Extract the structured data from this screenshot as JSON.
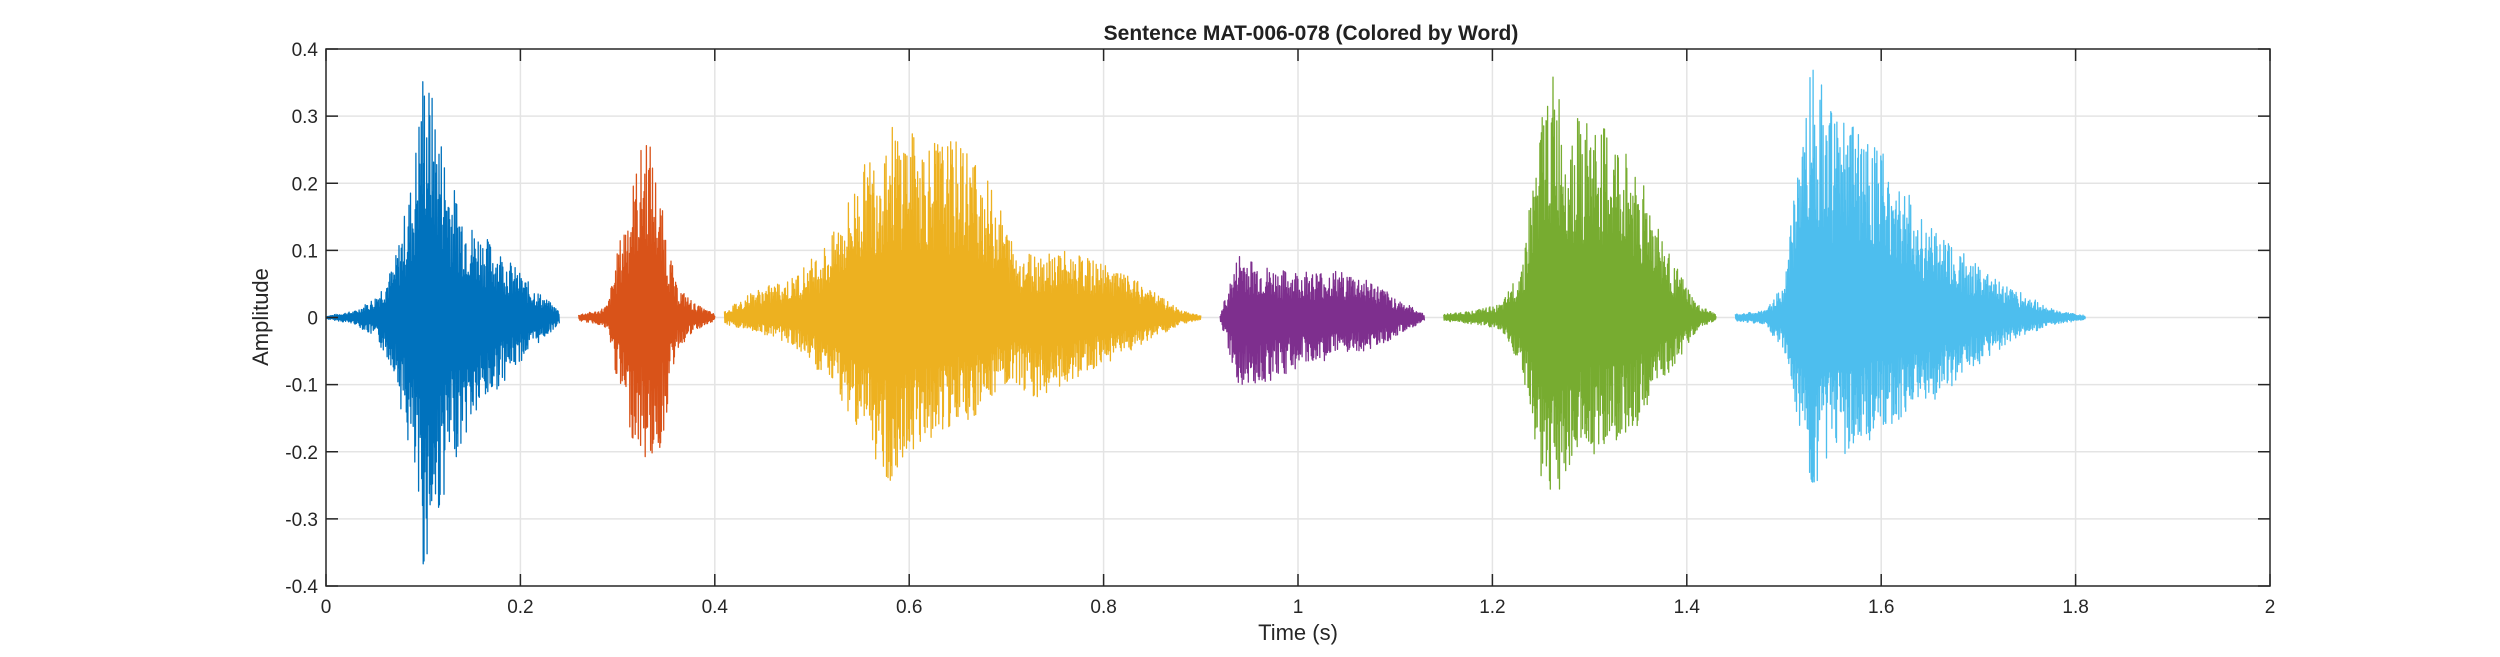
{
  "chart_data": {
    "type": "line",
    "title": "Sentence MAT-006-078 (Colored by Word)",
    "xlabel": "Time (s)",
    "ylabel": "Amplitude",
    "xlim": [
      0,
      2
    ],
    "ylim": [
      -0.4,
      0.4
    ],
    "x_ticks": [
      0,
      0.2,
      0.4,
      0.6,
      0.8,
      1,
      1.2,
      1.4,
      1.6,
      1.8,
      2
    ],
    "y_ticks": [
      -0.4,
      -0.3,
      -0.2,
      -0.1,
      0,
      0.1,
      0.2,
      0.3,
      0.4
    ],
    "x_tick_labels": [
      "0",
      "0.2",
      "0.4",
      "0.6",
      "0.8",
      "1",
      "1.2",
      "1.4",
      "1.6",
      "1.8",
      "2"
    ],
    "y_tick_labels": [
      "-0.4",
      "-0.3",
      "-0.2",
      "-0.1",
      "0",
      "0.1",
      "0.2",
      "0.3",
      "0.4"
    ],
    "grid": true,
    "series": [
      {
        "color": "#0072BD",
        "x": [
          0.0,
          0.03,
          0.05,
          0.07,
          0.09,
          0.1,
          0.11,
          0.13,
          0.15,
          0.18,
          0.21,
          0.24
        ],
        "upper": [
          0.002,
          0.01,
          0.03,
          0.08,
          0.22,
          0.385,
          0.33,
          0.2,
          0.14,
          0.1,
          0.05,
          0.01
        ],
        "lower": [
          -0.002,
          -0.01,
          -0.03,
          -0.08,
          -0.24,
          -0.38,
          -0.33,
          -0.22,
          -0.16,
          -0.1,
          -0.05,
          -0.01
        ]
      },
      {
        "color": "#D95319",
        "x": [
          0.26,
          0.28,
          0.29,
          0.3,
          0.315,
          0.33,
          0.345,
          0.36,
          0.38,
          0.4
        ],
        "upper": [
          0.005,
          0.01,
          0.02,
          0.1,
          0.2,
          0.29,
          0.17,
          0.05,
          0.02,
          0.005
        ],
        "lower": [
          -0.005,
          -0.01,
          -0.02,
          -0.1,
          -0.18,
          -0.22,
          -0.2,
          -0.05,
          -0.02,
          -0.005
        ]
      },
      {
        "color": "#EDB120",
        "x": [
          0.41,
          0.44,
          0.48,
          0.52,
          0.55,
          0.58,
          0.62,
          0.66,
          0.69,
          0.71,
          0.73,
          0.76,
          0.8,
          0.84,
          0.88,
          0.9
        ],
        "upper": [
          0.01,
          0.04,
          0.06,
          0.12,
          0.22,
          0.29,
          0.27,
          0.26,
          0.18,
          0.1,
          0.1,
          0.1,
          0.08,
          0.05,
          0.01,
          0.003
        ],
        "lower": [
          -0.01,
          -0.02,
          -0.04,
          -0.1,
          -0.17,
          -0.25,
          -0.18,
          -0.16,
          -0.12,
          -0.1,
          -0.12,
          -0.1,
          -0.07,
          -0.04,
          -0.01,
          -0.003
        ]
      },
      {
        "color": "#7E2F8E",
        "x": [
          0.92,
          0.94,
          0.96,
          0.98,
          1.01,
          1.04,
          1.07,
          1.1,
          1.13
        ],
        "upper": [
          0.005,
          0.1,
          0.08,
          0.07,
          0.07,
          0.07,
          0.06,
          0.03,
          0.005
        ],
        "lower": [
          -0.005,
          -0.11,
          -0.1,
          -0.09,
          -0.07,
          -0.06,
          -0.05,
          -0.03,
          -0.005
        ]
      },
      {
        "color": "#77AC30",
        "x": [
          1.15,
          1.18,
          1.21,
          1.23,
          1.25,
          1.26,
          1.28,
          1.31,
          1.35,
          1.38,
          1.41,
          1.43
        ],
        "upper": [
          0.005,
          0.01,
          0.02,
          0.08,
          0.3,
          0.37,
          0.3,
          0.29,
          0.23,
          0.1,
          0.02,
          0.005
        ],
        "lower": [
          -0.005,
          -0.01,
          -0.02,
          -0.08,
          -0.24,
          -0.29,
          -0.22,
          -0.2,
          -0.16,
          -0.09,
          -0.02,
          -0.005
        ]
      },
      {
        "color": "#4DBEEE",
        "x": [
          1.45,
          1.48,
          1.5,
          1.52,
          1.53,
          1.55,
          1.58,
          1.62,
          1.66,
          1.7,
          1.74,
          1.78,
          1.81
        ],
        "upper": [
          0.005,
          0.01,
          0.05,
          0.3,
          0.4,
          0.3,
          0.3,
          0.2,
          0.12,
          0.08,
          0.04,
          0.01,
          0.003
        ],
        "lower": [
          -0.005,
          -0.01,
          -0.05,
          -0.2,
          -0.28,
          -0.22,
          -0.2,
          -0.15,
          -0.12,
          -0.07,
          -0.03,
          -0.01,
          -0.003
        ]
      }
    ]
  }
}
